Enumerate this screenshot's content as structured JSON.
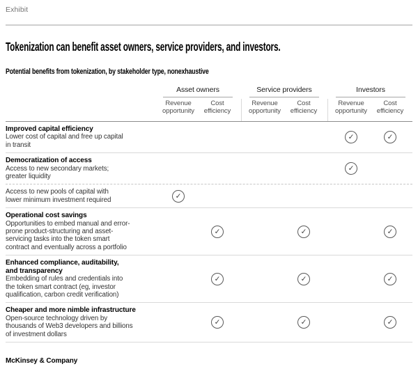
{
  "exhibit_label": "Exhibit",
  "title": "Tokenization can benefit asset owners, service providers, and investors.",
  "subtitle": "Potential benefits from tokenization, by stakeholder type, nonexhaustive",
  "icons": {
    "check_icon": "✓"
  },
  "colors": {
    "rule_dark": "#8c8c8c",
    "rule_light": "#d9d9d9",
    "rule_page": "#cfcfcf",
    "text_muted": "#757575"
  },
  "table": {
    "groups": [
      "Asset owners",
      "Service providers",
      "Investors"
    ],
    "subcolumns": [
      "Revenue opportunity",
      "Cost efficiency"
    ],
    "rows": [
      {
        "heading": "Improved capital efficiency",
        "description": "Lower cost of capital and free up capital\nin transit",
        "divider": "solid-dark",
        "checks": [
          false,
          false,
          false,
          false,
          true,
          true
        ]
      },
      {
        "heading": "Democratization of access",
        "description": "Access to new secondary markets;\ngreater liquidity",
        "divider": "solid",
        "checks": [
          false,
          false,
          false,
          false,
          true,
          false
        ]
      },
      {
        "heading": "",
        "description": "Access to new pools of capital with\nlower minimum investment required",
        "divider": "dashed",
        "checks": [
          true,
          false,
          false,
          false,
          false,
          false
        ]
      },
      {
        "heading": "Operational cost savings",
        "description": "Opportunities to embed manual and error-\nprone product-structuring and asset-\nservicing tasks into the token smart\ncontract and eventually across a portfolio",
        "divider": "solid",
        "checks": [
          false,
          true,
          false,
          true,
          false,
          true
        ]
      },
      {
        "heading": "Enhanced compliance, auditability,\nand transparency",
        "description": "Embedding of rules and credentials into\nthe token smart contract (eg, investor\nqualification, carbon credit verification)",
        "divider": "solid",
        "checks": [
          false,
          true,
          false,
          true,
          false,
          true
        ]
      },
      {
        "heading": "Cheaper and more nimble infrastructure",
        "description": "Open-source technology driven by\nthousands of Web3 developers and billions\nof investment dollars",
        "divider": "solid",
        "checks": [
          false,
          true,
          false,
          true,
          false,
          true
        ]
      }
    ]
  },
  "footer": {
    "brand": "McKinsey & Company"
  }
}
